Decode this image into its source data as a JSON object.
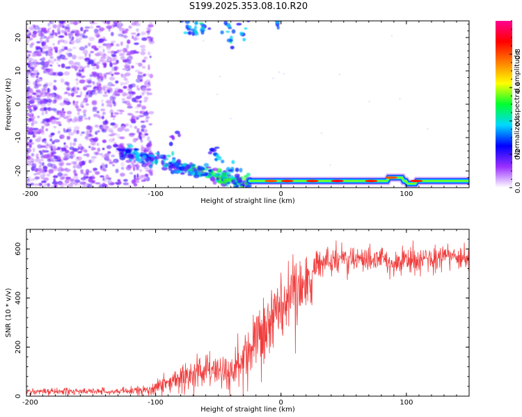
{
  "title": "S199.2025.353.08.10.R20",
  "chart_data": [
    {
      "type": "heatmap",
      "name": "spectrogram",
      "xlabel": "Height of straight line (km)",
      "ylabel": "Frequency (Hz)",
      "xlim": [
        -203,
        150
      ],
      "ylim": [
        -25,
        25
      ],
      "x_ticks": [
        -200,
        -100,
        0,
        100
      ],
      "y_ticks": [
        -20,
        -10,
        0,
        10,
        20
      ],
      "colorbar": {
        "label": "Normalized spectral amplitude",
        "range": [
          0,
          1
        ],
        "ticks": [
          0.0,
          0.2,
          0.4,
          0.6,
          0.8
        ],
        "colors": [
          "#ffffff",
          "#9b30ff",
          "#0000ff",
          "#00d8ff",
          "#00ff30",
          "#ffff00",
          "#ff8000",
          "#ff0000",
          "#ff0090"
        ]
      },
      "features": [
        {
          "label": "diffuse noise",
          "x_range": [
            -203,
            -105
          ],
          "y_range": [
            -25,
            25
          ],
          "amplitude": 0.1
        },
        {
          "label": "descending band",
          "x_start": -130,
          "x_end": -25,
          "y_start": -14,
          "y_end": -24,
          "amplitude": 0.3
        },
        {
          "label": "carrier",
          "x_start": -25,
          "x_end": 150,
          "y": -23,
          "amplitude": 0.9
        },
        {
          "label": "upper-edge features",
          "x_range": [
            -80,
            0
          ],
          "y": 23,
          "amplitude": 0.3
        }
      ]
    },
    {
      "type": "line",
      "name": "snr",
      "xlabel": "Height of straight line (km)",
      "ylabel": "SNR (10 * v/v)",
      "xlim": [
        -203,
        150
      ],
      "ylim": [
        0,
        680
      ],
      "x_ticks": [
        -200,
        -100,
        0,
        100
      ],
      "y_ticks": [
        0,
        200,
        400,
        600
      ],
      "color": "#f03c3c",
      "series": [
        {
          "name": "SNR",
          "x": [
            -203,
            -180,
            -160,
            -140,
            -120,
            -110,
            -100,
            -90,
            -80,
            -70,
            -60,
            -50,
            -40,
            -30,
            -25,
            -20,
            -15,
            -10,
            -5,
            0,
            5,
            10,
            15,
            20,
            25,
            30,
            40,
            50,
            60,
            70,
            80,
            90,
            100,
            110,
            120,
            130,
            140,
            150
          ],
          "mean": [
            20,
            20,
            20,
            20,
            20,
            25,
            35,
            55,
            75,
            90,
            110,
            105,
            90,
            130,
            160,
            210,
            250,
            300,
            330,
            360,
            390,
            420,
            420,
            440,
            480,
            530,
            560,
            560,
            550,
            560,
            555,
            545,
            560,
            550,
            560,
            570,
            565,
            560
          ],
          "noise": [
            10,
            12,
            12,
            12,
            14,
            18,
            25,
            35,
            45,
            55,
            65,
            70,
            70,
            90,
            110,
            130,
            150,
            150,
            140,
            130,
            120,
            130,
            130,
            110,
            90,
            70,
            50,
            45,
            45,
            45,
            45,
            45,
            45,
            45,
            45,
            45,
            45,
            45
          ]
        }
      ]
    }
  ]
}
